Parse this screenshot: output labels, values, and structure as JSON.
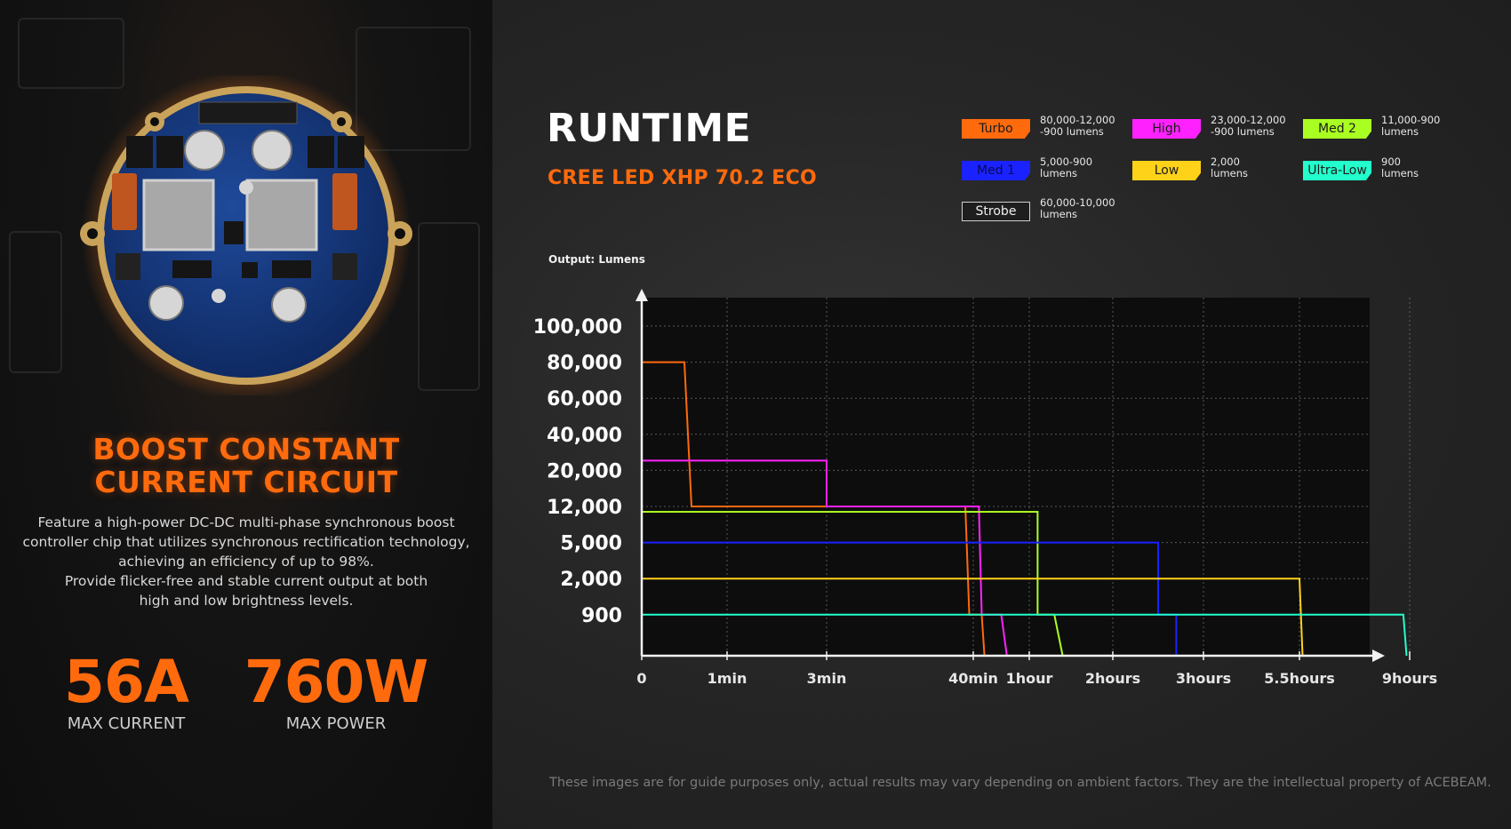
{
  "circuit": {
    "title": "BOOST CONSTANT\nCURRENT CIRCUIT",
    "description": "Feature a high-power DC-DC multi-phase synchronous boost\ncontroller chip that utilizes synchronous rectification technology,\nachieving an efficiency of up to 98%.\nProvide flicker-free and stable current output at both\nhigh and low brightness levels."
  },
  "stats": [
    {
      "value": "56A",
      "label": "MAX CURRENT"
    },
    {
      "value": "760W",
      "label": "MAX POWER"
    }
  ],
  "runtime": {
    "title": "RUNTIME",
    "subtitle": "CREE LED XHP 70.2 ECO",
    "output_label": "Output: Lumens"
  },
  "legend": [
    {
      "mode": "Turbo",
      "lumens": "80,000-12,000\n-900 lumens",
      "color": "#ff6a0d",
      "text_color": "#1a1a1a",
      "outlined": false
    },
    {
      "mode": "High",
      "lumens": "23,000-12,000\n-900 lumens",
      "color": "#ff22ff",
      "text_color": "#1a1a1a",
      "outlined": false
    },
    {
      "mode": "Med 2",
      "lumens": "11,000-900\nlumens",
      "color": "#aaff22",
      "text_color": "#1a1a1a",
      "outlined": false
    },
    {
      "mode": "Med 1",
      "lumens": "5,000-900\nlumens",
      "color": "#1a22ff",
      "text_color": "#0a0a55",
      "outlined": false
    },
    {
      "mode": "Low",
      "lumens": "2,000\nlumens",
      "color": "#ffd21a",
      "text_color": "#1a1a1a",
      "outlined": false
    },
    {
      "mode": "Ultra-Low",
      "lumens": "900\nlumens",
      "color": "#22ffcc",
      "text_color": "#1a1a1a",
      "outlined": false
    },
    {
      "mode": "Strobe",
      "lumens": "60,000-10,000\nlumens",
      "color": "#1e1e1e",
      "text_color": "#f0f0f0",
      "outlined": true
    }
  ],
  "chart_data": {
    "type": "line",
    "title": "RUNTIME",
    "subtitle": "CREE LED XHP 70.2 ECO",
    "ylabel": "Output: Lumens",
    "xlabel": "",
    "x_categories": [
      "0",
      "1min",
      "3min",
      "40min",
      "1hour",
      "2hours",
      "3hours",
      "5.5hours",
      "9hours"
    ],
    "y_categories": [
      "900",
      "2,000",
      "5,000",
      "12,000",
      "20,000",
      "40,000",
      "60,000",
      "80,000",
      "100,000"
    ],
    "y_scale": "categorical (non-linear)",
    "grid": true,
    "legend": "top-right",
    "series": [
      {
        "name": "Turbo",
        "color": "#ff6a0d",
        "points": [
          [
            "0",
            "80,000"
          ],
          [
            "~30s",
            "80,000"
          ],
          [
            "~35s",
            "12,000"
          ],
          [
            "~38min",
            "12,000"
          ],
          [
            "~39min",
            "900"
          ],
          [
            "~43min",
            "900"
          ],
          [
            "~44min",
            "0"
          ]
        ]
      },
      {
        "name": "High",
        "color": "#ff22ff",
        "points": [
          [
            "0",
            "23,000"
          ],
          [
            "3min",
            "23,000"
          ],
          [
            "3min",
            "12,000"
          ],
          [
            "~42min",
            "12,000"
          ],
          [
            "~43min",
            "900"
          ],
          [
            "~50min",
            "900"
          ],
          [
            "~52min",
            "0"
          ]
        ]
      },
      {
        "name": "Med 2",
        "color": "#aaff22",
        "points": [
          [
            "0",
            "11,000"
          ],
          [
            "~1.1hours",
            "11,000"
          ],
          [
            "~1.1hours",
            "900"
          ],
          [
            "~1.3hours",
            "900"
          ],
          [
            "~1.4hours",
            "0"
          ]
        ]
      },
      {
        "name": "Med 1",
        "color": "#1a22ff",
        "points": [
          [
            "0",
            "5,000"
          ],
          [
            "~2.5hours",
            "5,000"
          ],
          [
            "~2.5hours",
            "900"
          ],
          [
            "~2.7hours",
            "900"
          ],
          [
            "~2.7hours",
            "0"
          ]
        ]
      },
      {
        "name": "Low",
        "color": "#ffd21a",
        "points": [
          [
            "0",
            "2,000"
          ],
          [
            "5.5hours",
            "2,000"
          ],
          [
            "~5.6hours",
            "0"
          ]
        ]
      },
      {
        "name": "Ultra-Low",
        "color": "#22ffcc",
        "points": [
          [
            "0",
            "900"
          ],
          [
            "~8.8hours",
            "900"
          ],
          [
            "~8.9hours",
            "0"
          ]
        ]
      }
    ]
  },
  "footer": {
    "disclaimer": "These images are for guide purposes only, actual results may vary depending on ambient factors. They are the intellectual property of ACEBEAM."
  }
}
